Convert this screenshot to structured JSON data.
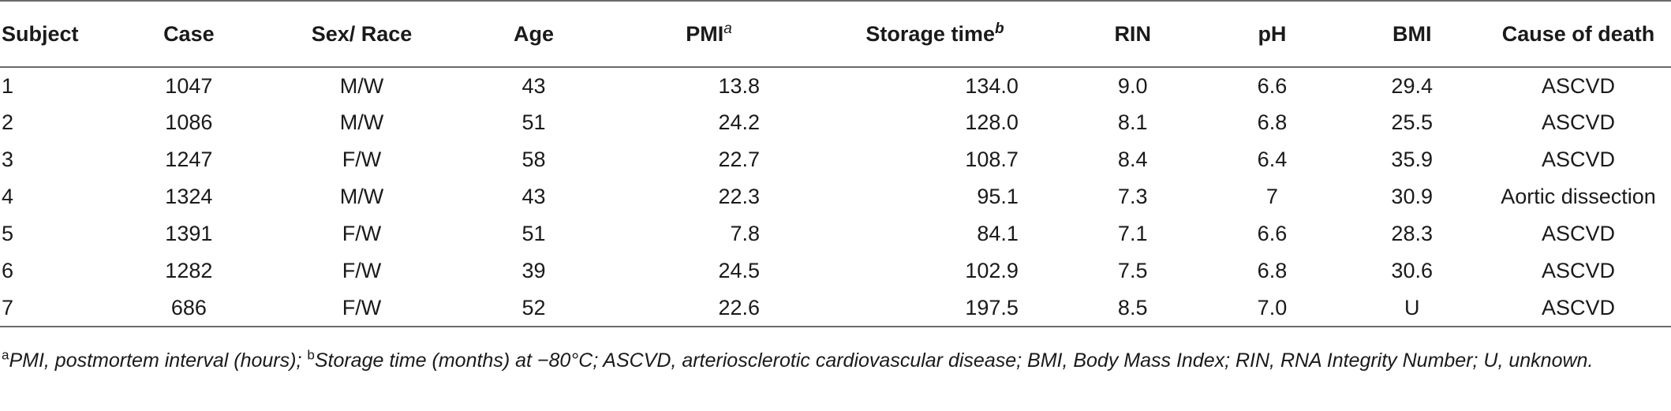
{
  "table": {
    "headers": {
      "subject": "Subject",
      "case": "Case",
      "sex_race": "Sex/ Race",
      "age": "Age",
      "pmi": "PMI",
      "pmi_mark": "a",
      "storage": "Storage time",
      "storage_mark": "b",
      "rin": "RIN",
      "ph": "pH",
      "bmi": "BMI",
      "cause": "Cause of death"
    },
    "rows": [
      {
        "subject": "1",
        "case": "1047",
        "sex_race": "M/W",
        "age": "43",
        "pmi": "13.8",
        "storage": "134.0",
        "rin": "9.0",
        "ph": "6.6",
        "bmi": "29.4",
        "cause": "ASCVD"
      },
      {
        "subject": "2",
        "case": "1086",
        "sex_race": "M/W",
        "age": "51",
        "pmi": "24.2",
        "storage": "128.0",
        "rin": "8.1",
        "ph": "6.8",
        "bmi": "25.5",
        "cause": "ASCVD"
      },
      {
        "subject": "3",
        "case": "1247",
        "sex_race": "F/W",
        "age": "58",
        "pmi": "22.7",
        "storage": "108.7",
        "rin": "8.4",
        "ph": "6.4",
        "bmi": "35.9",
        "cause": "ASCVD"
      },
      {
        "subject": "4",
        "case": "1324",
        "sex_race": "M/W",
        "age": "43",
        "pmi": "22.3",
        "storage": "95.1",
        "rin": "7.3",
        "ph": "7",
        "bmi": "30.9",
        "cause": "Aortic dissection"
      },
      {
        "subject": "5",
        "case": "1391",
        "sex_race": "F/W",
        "age": "51",
        "pmi": "7.8",
        "storage": "84.1",
        "rin": "7.1",
        "ph": "6.6",
        "bmi": "28.3",
        "cause": "ASCVD"
      },
      {
        "subject": "6",
        "case": "1282",
        "sex_race": "F/W",
        "age": "39",
        "pmi": "24.5",
        "storage": "102.9",
        "rin": "7.5",
        "ph": "6.8",
        "bmi": "30.6",
        "cause": "ASCVD"
      },
      {
        "subject": "7",
        "case": "686",
        "sex_race": "F/W",
        "age": "52",
        "pmi": "22.6",
        "storage": "197.5",
        "rin": "8.5",
        "ph": "7.0",
        "bmi": "U",
        "cause": "ASCVD"
      }
    ]
  },
  "footnote": {
    "mark_a": "a",
    "text_a": "PMI, postmortem interval (hours); ",
    "mark_b": "b",
    "text_b": "Storage time (months) at −80°C; ASCVD, arteriosclerotic cardiovascular disease; BMI, Body Mass Index; RIN, RNA Integrity Number; U, unknown."
  }
}
